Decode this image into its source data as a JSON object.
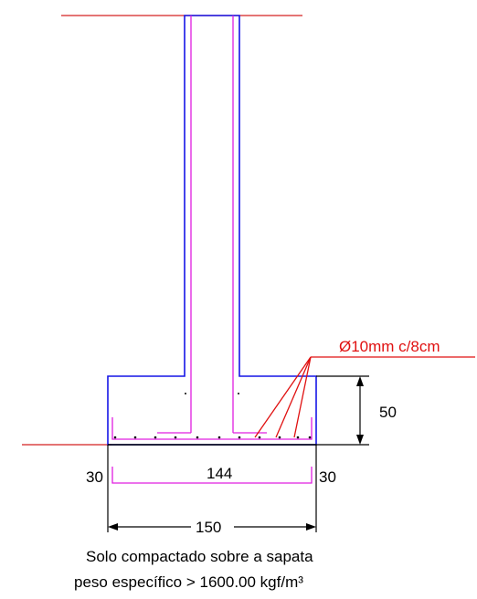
{
  "colors": {
    "concrete_outline": "#1515e6",
    "rebar": "#e01ee0",
    "ground_line": "#d42020",
    "dimension": "#000000",
    "callout": "#e01010"
  },
  "rebar_callout": "Ø10mm c/8cm",
  "dimensions": {
    "footing_height": "50",
    "left_cover": "30",
    "right_cover": "30",
    "inner_width": "144",
    "total_width": "150"
  },
  "notes": {
    "line1": "Solo compactado sobre a sapata",
    "line2": "peso específico > 1600.00 kgf/m³"
  }
}
